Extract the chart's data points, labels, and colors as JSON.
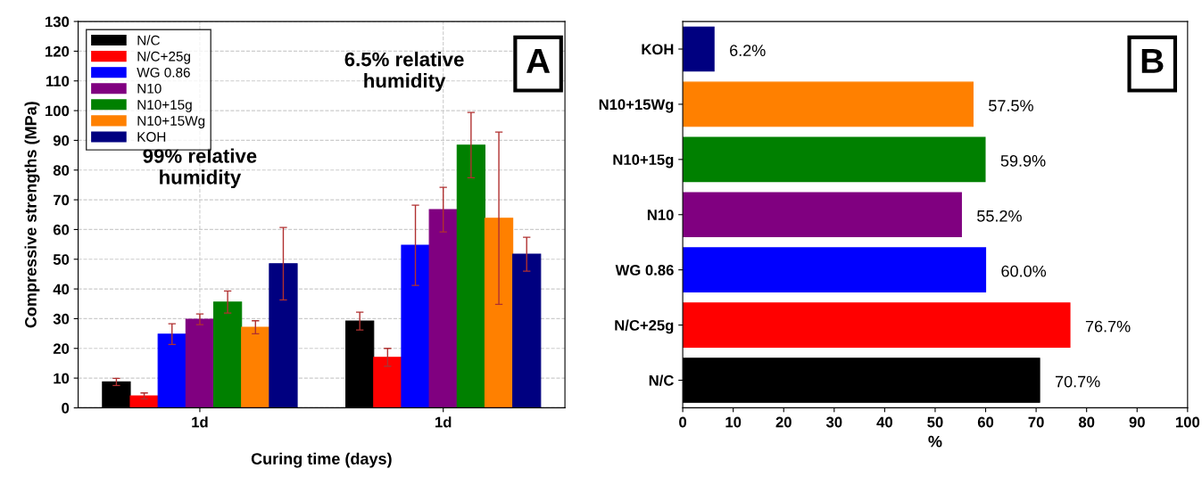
{
  "chart_data": [
    {
      "type": "bar",
      "ylabel": "Compressive strengths (MPa)",
      "xlabel": "Curing time (days)",
      "categories": [
        "1d",
        "1d"
      ],
      "ylim": [
        0,
        130
      ],
      "yticks": [
        0,
        10,
        20,
        30,
        40,
        50,
        60,
        70,
        80,
        90,
        100,
        110,
        120,
        130
      ],
      "grid": true,
      "legend": "top left",
      "annotations": [
        "99% relative humidity",
        "6.5% relative humidity",
        "A"
      ],
      "series": [
        {
          "name": "N/C",
          "color": "#000000",
          "values": [
            8.7,
            29.2
          ],
          "errors": [
            1.2,
            3
          ]
        },
        {
          "name": "N/C+25g",
          "color": "#ff0000",
          "values": [
            4.0,
            17.0
          ],
          "errors": [
            1,
            3
          ]
        },
        {
          "name": "WG 0.86",
          "color": "#0000ff",
          "values": [
            24.8,
            54.7
          ],
          "errors": [
            3.5,
            13.5
          ]
        },
        {
          "name": "N10",
          "color": "#800080",
          "values": [
            29.8,
            66.7
          ],
          "errors": [
            1.8,
            7.5
          ]
        },
        {
          "name": "N10+15g",
          "color": "#008000",
          "values": [
            35.6,
            88.4
          ],
          "errors": [
            3.7,
            11
          ]
        },
        {
          "name": "N10+15Wg",
          "color": "#ff8000",
          "values": [
            27.1,
            63.8
          ],
          "errors": [
            2.2,
            29
          ]
        },
        {
          "name": "KOH",
          "color": "#000080",
          "values": [
            48.5,
            51.7
          ],
          "errors": [
            12.2,
            5.7
          ]
        }
      ]
    },
    {
      "type": "bar",
      "orientation": "horizontal",
      "xlabel": "%",
      "categories": [
        "KOH",
        "N10+15Wg",
        "N10+15g",
        "N10",
        "WG 0.86",
        "N/C+25g",
        "N/C"
      ],
      "xlim": [
        0,
        100
      ],
      "xticks": [
        0,
        10,
        20,
        30,
        40,
        50,
        60,
        70,
        80,
        90,
        100
      ],
      "values": [
        6.2,
        57.5,
        59.9,
        55.2,
        60.0,
        76.7,
        70.7
      ],
      "value_labels": [
        "6.2%",
        "57.5%",
        "59.9%",
        "55.2%",
        "60.0%",
        "76.7%",
        "70.7%"
      ],
      "colors": [
        "#000080",
        "#ff8000",
        "#008000",
        "#800080",
        "#0000ff",
        "#ff0000",
        "#000000"
      ],
      "annotations": [
        "B"
      ]
    }
  ]
}
